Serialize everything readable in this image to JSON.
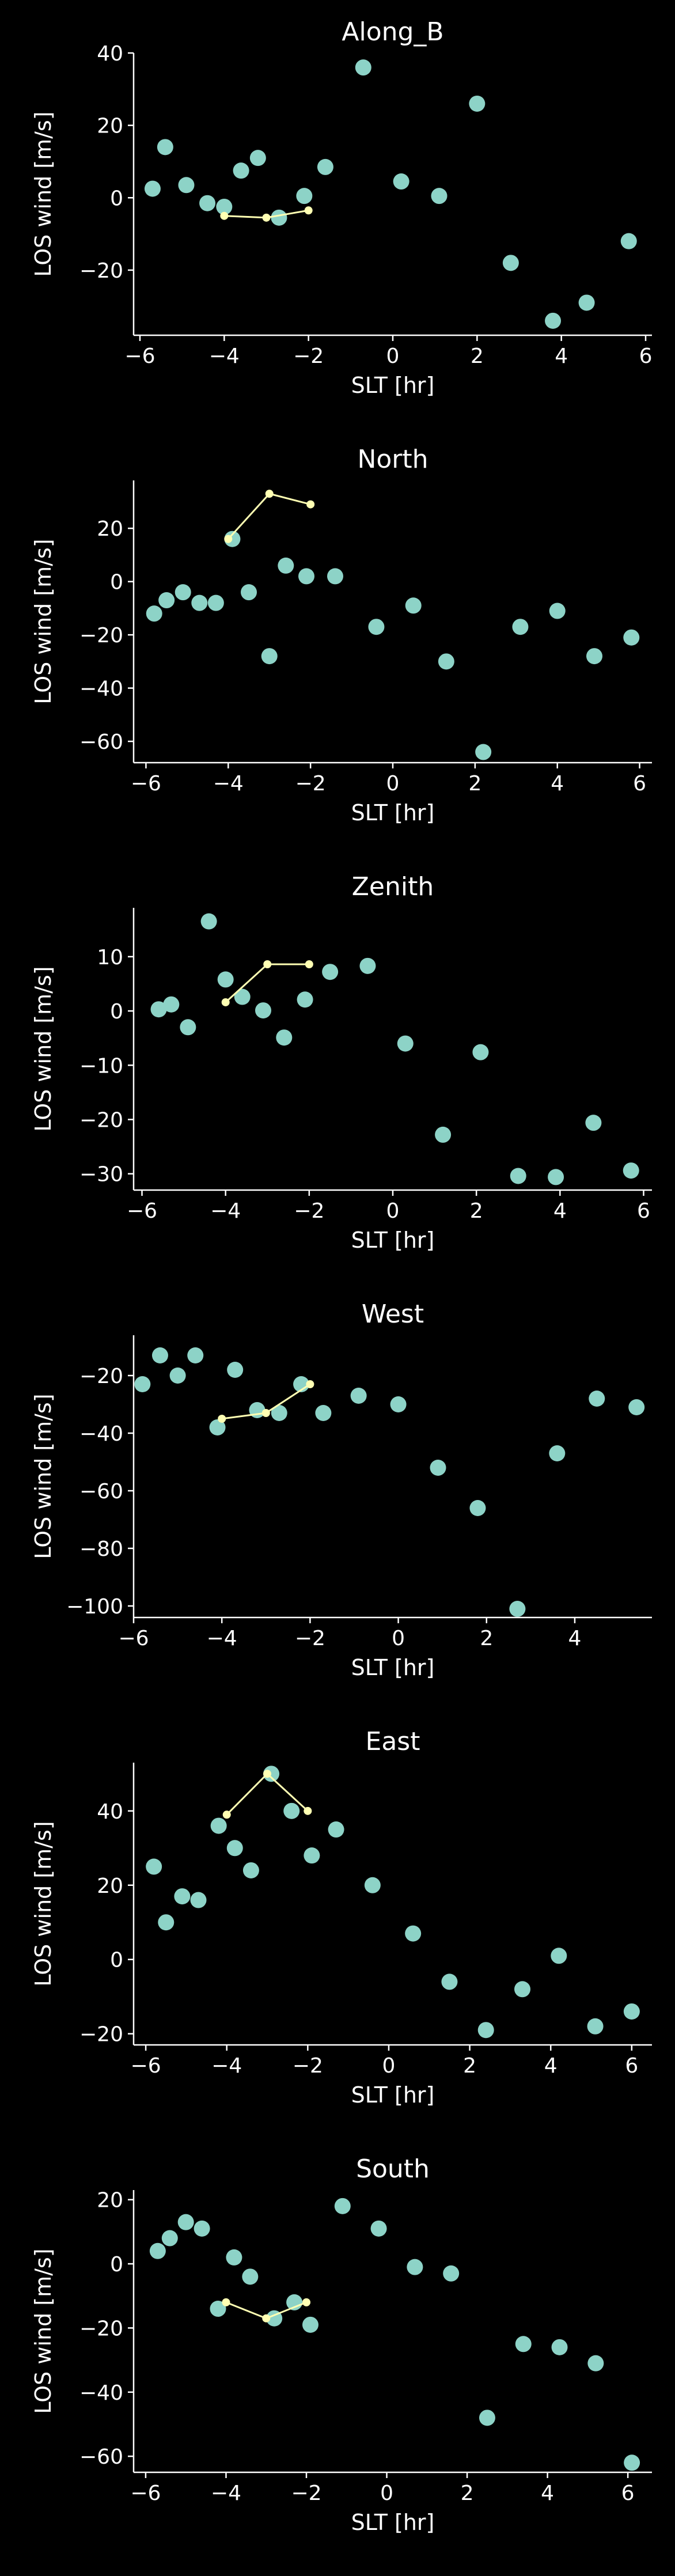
{
  "colors": {
    "background": "#000000",
    "scatter": "#8dd3c7",
    "line": "#ffffb3",
    "axis": "#ffffff"
  },
  "chart_data": [
    {
      "type": "scatter",
      "title": "Along_B",
      "xlabel": "SLT [hr]",
      "ylabel": "LOS wind [m/s]",
      "xlim": [
        -6.15,
        6.15
      ],
      "ylim": [
        -38,
        40
      ],
      "xticks": [
        -6,
        -4,
        -2,
        0,
        2,
        4,
        6
      ],
      "yticks": [
        -20,
        0,
        20,
        40
      ],
      "scatter": {
        "x": [
          -5.7,
          -5.4,
          -4.9,
          -4.4,
          -4.0,
          -3.6,
          -3.2,
          -2.7,
          -2.1,
          -1.6,
          -0.7,
          0.2,
          1.1,
          2.0,
          2.8,
          3.8,
          4.6,
          5.6
        ],
        "y": [
          2.5,
          14,
          3.5,
          -1.5,
          -2.5,
          7.5,
          11,
          -5.5,
          0.5,
          8.5,
          36,
          4.5,
          0.5,
          26,
          -18,
          -34,
          -29,
          -12
        ]
      },
      "line": {
        "x": [
          -4.0,
          -3.0,
          -2.0
        ],
        "y": [
          -5,
          -5.5,
          -3.5
        ]
      }
    },
    {
      "type": "scatter",
      "title": "North",
      "xlabel": "SLT [hr]",
      "ylabel": "LOS wind [m/s]",
      "xlim": [
        -6.3,
        6.3
      ],
      "ylim": [
        -68,
        38
      ],
      "xticks": [
        -6,
        -4,
        -2,
        0,
        2,
        4,
        6
      ],
      "yticks": [
        -60,
        -40,
        -20,
        0,
        20
      ],
      "scatter": {
        "x": [
          -5.8,
          -5.5,
          -5.1,
          -4.7,
          -4.3,
          -3.9,
          -3.5,
          -3.0,
          -2.6,
          -2.1,
          -1.4,
          -0.4,
          0.5,
          1.3,
          2.2,
          3.1,
          4.0,
          4.9,
          5.8
        ],
        "y": [
          -12,
          -7,
          -4,
          -8,
          -8,
          16,
          -4,
          -28,
          6,
          2,
          2,
          -17,
          -9,
          -30,
          -64,
          -17,
          -11,
          -28,
          -21
        ]
      },
      "line": {
        "x": [
          -4.0,
          -3.0,
          -2.0
        ],
        "y": [
          16,
          33,
          29
        ]
      }
    },
    {
      "type": "scatter",
      "title": "Zenith",
      "xlabel": "SLT [hr]",
      "ylabel": "LOS wind [m/s]",
      "xlim": [
        -6.2,
        6.2
      ],
      "ylim": [
        -33,
        19
      ],
      "xticks": [
        -6,
        -4,
        -2,
        0,
        2,
        4,
        6
      ],
      "yticks": [
        -30,
        -20,
        -10,
        0,
        10
      ],
      "scatter": {
        "x": [
          -5.6,
          -5.3,
          -4.9,
          -4.4,
          -4.0,
          -3.6,
          -3.1,
          -2.6,
          -2.1,
          -1.5,
          -0.6,
          0.3,
          1.2,
          2.1,
          3.0,
          3.9,
          4.8,
          5.7
        ],
        "y": [
          0.3,
          1.2,
          -3.0,
          16.5,
          5.8,
          2.6,
          0.1,
          -4.9,
          2.1,
          7.2,
          8.3,
          -6.0,
          -22.8,
          -7.6,
          -30.4,
          -30.6,
          -20.6,
          -29.4
        ]
      },
      "line": {
        "x": [
          -4.0,
          -3.0,
          -2.0
        ],
        "y": [
          1.6,
          8.6,
          8.6
        ]
      }
    },
    {
      "type": "scatter",
      "title": "West",
      "xlabel": "SLT [hr]",
      "ylabel": "LOS wind [m/s]",
      "xlim": [
        -6.0,
        5.75
      ],
      "ylim": [
        -104,
        -6
      ],
      "xticks": [
        -6,
        -4,
        -2,
        0,
        2,
        4
      ],
      "yticks": [
        -100,
        -80,
        -60,
        -40,
        -20
      ],
      "scatter": {
        "x": [
          -5.8,
          -5.4,
          -5.0,
          -4.6,
          -4.1,
          -3.7,
          -3.2,
          -2.7,
          -2.2,
          -1.7,
          -0.9,
          0.0,
          0.9,
          1.8,
          2.7,
          3.6,
          4.5,
          5.4
        ],
        "y": [
          -23,
          -13,
          -20,
          -13,
          -38,
          -18,
          -32,
          -33,
          -23,
          -33,
          -27,
          -30,
          -52,
          -66,
          -101,
          -47,
          -28,
          -31
        ]
      },
      "line": {
        "x": [
          -4.0,
          -3.0,
          -2.0
        ],
        "y": [
          -35,
          -33,
          -23
        ]
      }
    },
    {
      "type": "scatter",
      "title": "East",
      "xlabel": "SLT [hr]",
      "ylabel": "LOS wind [m/s]",
      "xlim": [
        -6.3,
        6.5
      ],
      "ylim": [
        -23,
        53
      ],
      "xticks": [
        -6,
        -4,
        -2,
        0,
        2,
        4,
        6
      ],
      "yticks": [
        -20,
        0,
        20,
        40
      ],
      "scatter": {
        "x": [
          -5.8,
          -5.5,
          -5.1,
          -4.7,
          -4.2,
          -3.8,
          -3.4,
          -2.9,
          -2.4,
          -1.9,
          -1.3,
          -0.4,
          0.6,
          1.5,
          2.4,
          3.3,
          4.2,
          5.1,
          6.0
        ],
        "y": [
          25,
          10,
          17,
          16,
          36,
          30,
          24,
          50,
          40,
          28,
          35,
          20,
          7,
          -6,
          -19,
          -8,
          1,
          -18,
          -14
        ]
      },
      "line": {
        "x": [
          -4.0,
          -3.0,
          -2.0
        ],
        "y": [
          39,
          50,
          40
        ]
      }
    },
    {
      "type": "scatter",
      "title": "South",
      "xlabel": "SLT [hr]",
      "ylabel": "LOS wind [m/s]",
      "xlim": [
        -6.3,
        6.6
      ],
      "ylim": [
        -65,
        23
      ],
      "xticks": [
        -6,
        -4,
        -2,
        0,
        2,
        4,
        6
      ],
      "yticks": [
        -60,
        -40,
        -20,
        0,
        20
      ],
      "scatter": {
        "x": [
          -5.7,
          -5.4,
          -5.0,
          -4.6,
          -4.2,
          -3.8,
          -3.4,
          -2.8,
          -2.3,
          -1.9,
          -1.1,
          -0.2,
          0.7,
          1.6,
          2.5,
          3.4,
          4.3,
          5.2,
          6.1
        ],
        "y": [
          4,
          8,
          13,
          11,
          -14,
          2,
          -4,
          -17,
          -12,
          -19,
          18,
          11,
          -1,
          -3,
          -48,
          -25,
          -26,
          -31,
          -62
        ]
      },
      "line": {
        "x": [
          -4.0,
          -3.0,
          -2.0
        ],
        "y": [
          -12,
          -17,
          -12
        ]
      }
    }
  ]
}
